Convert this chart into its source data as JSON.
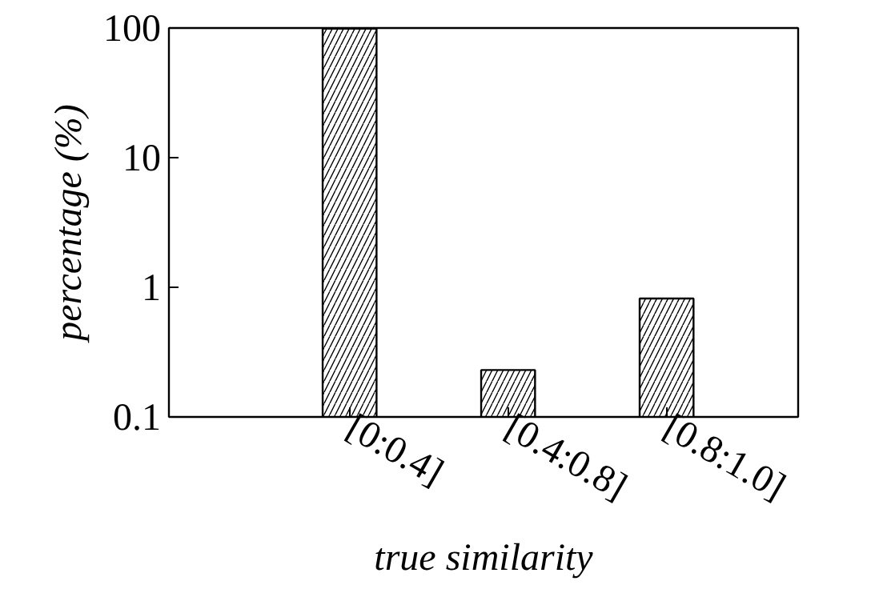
{
  "chart_data": {
    "type": "bar",
    "xlabel": "true similarity",
    "ylabel": "percentage (%)",
    "categories": [
      "[0:0.4]",
      "[0.4:0.8]",
      "[0.8:1.0]"
    ],
    "values": [
      99,
      0.23,
      0.82
    ],
    "color": "#ffffff",
    "log": "y",
    "ylim": [
      0.1,
      100
    ],
    "yticks": [
      0.1,
      1,
      10,
      100
    ],
    "grid": false
  }
}
